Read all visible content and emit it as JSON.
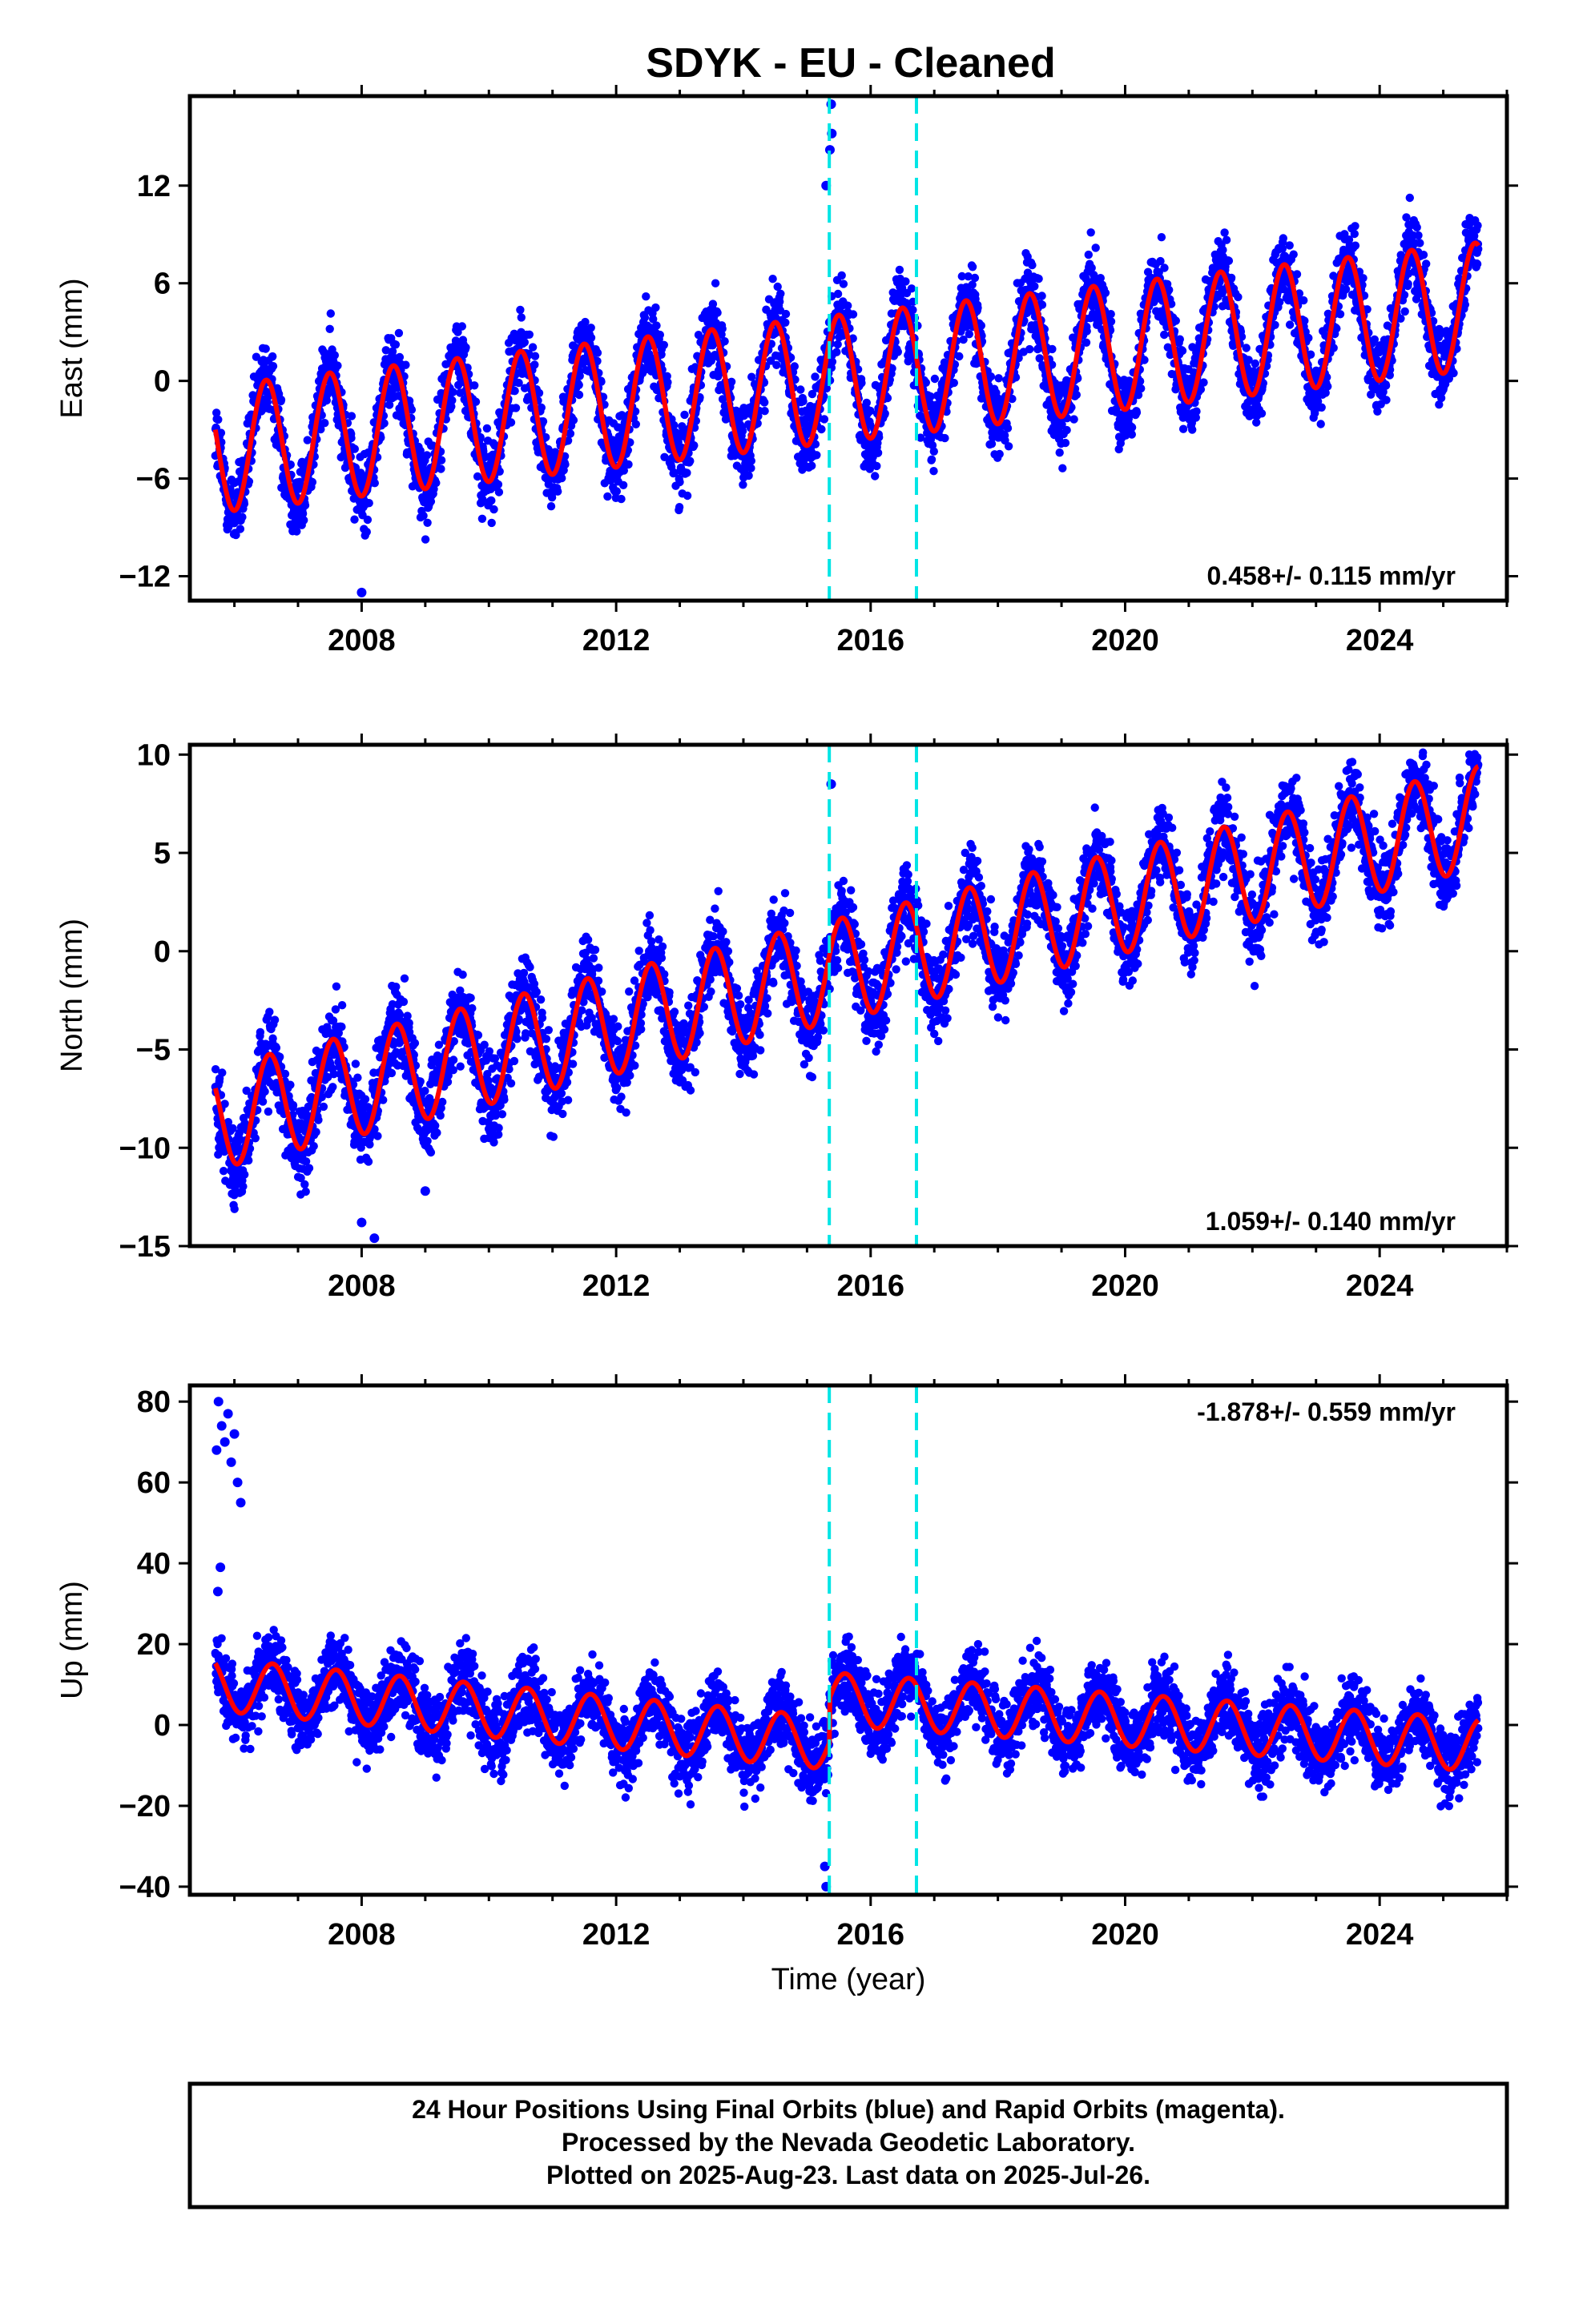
{
  "title": "SDYK  - EU - Cleaned",
  "xlabel": "Time (year)",
  "footer": {
    "line1": "24 Hour Positions Using Final Orbits (blue) and Rapid Orbits (magenta).",
    "line2": "Processed by the Nevada Geodetic Laboratory.",
    "line3": "Plotted on 2025-Aug-23. Last data on 2025-Jul-26."
  },
  "colors": {
    "points": "#0000ff",
    "model": "#ff0000",
    "events": "#00e5e5",
    "axis": "#000000"
  },
  "chart_data": [
    {
      "type": "scatter",
      "ylabel": "East (mm)",
      "rate_text": "0.458+/- 0.115 mm/yr",
      "rate_position": "bottom-right",
      "xlim": [
        2005.3,
        2026.0
      ],
      "ylim": [
        -13.5,
        17.5
      ],
      "xticks": [
        2008,
        2012,
        2016,
        2020,
        2024
      ],
      "yticks": [
        -12,
        -6,
        0,
        6,
        12
      ],
      "event_lines": [
        2015.35,
        2016.72
      ],
      "model": {
        "start_year": 2005.7,
        "end_year": 2025.55,
        "trend_start": -4.2,
        "trend_end": 4.6,
        "annual_amplitude": 3.9,
        "peak_fraction_of_year": 0.5,
        "amplitude_growth": 0.0
      },
      "scatter_spread": 1.6,
      "outliers": [
        [
          2015.38,
          17.0
        ],
        [
          2015.39,
          15.2
        ],
        [
          2015.36,
          14.2
        ],
        [
          2008.0,
          -13.0
        ],
        [
          2015.3,
          12.0
        ]
      ]
    },
    {
      "type": "scatter",
      "ylabel": "North (mm)",
      "rate_text": "1.059+/- 0.140 mm/yr",
      "rate_position": "bottom-right",
      "xlim": [
        2005.3,
        2026.0
      ],
      "ylim": [
        -15.0,
        10.5
      ],
      "xticks": [
        2008,
        2012,
        2016,
        2020,
        2024
      ],
      "yticks": [
        -15,
        -10,
        -5,
        0,
        5,
        10
      ],
      "event_lines": [
        2015.35,
        2016.72
      ],
      "model": {
        "start_year": 2005.7,
        "end_year": 2025.55,
        "trend_start": -8.5,
        "trend_end": 6.8,
        "annual_amplitude": 2.6,
        "peak_fraction_of_year": 0.55,
        "amplitude_growth": 0.0
      },
      "scatter_spread": 1.4,
      "outliers": [
        [
          2008.0,
          -13.8
        ],
        [
          2008.2,
          -14.6
        ],
        [
          2009.0,
          -12.2
        ],
        [
          2015.38,
          8.5
        ]
      ]
    },
    {
      "type": "scatter",
      "ylabel": "Up (mm)",
      "rate_text": "-1.878+/- 0.559 mm/yr",
      "rate_position": "top-right",
      "xlim": [
        2005.3,
        2026.0
      ],
      "ylim": [
        -42.0,
        84.0
      ],
      "xticks": [
        2008,
        2012,
        2016,
        2020,
        2024
      ],
      "yticks": [
        -40,
        -20,
        0,
        20,
        40,
        60,
        80
      ],
      "event_lines": [
        2015.35,
        2016.72
      ],
      "model": {
        "start_year": 2005.7,
        "end_year": 2025.55,
        "segments": [
          {
            "from": 2005.7,
            "to": 2015.35,
            "trend_start": 10.0,
            "trend_end": -4.5
          },
          {
            "from": 2015.35,
            "to": 2025.55,
            "trend_start": 6.5,
            "trend_end": -5.0
          }
        ],
        "annual_amplitude": 6.5,
        "peak_fraction_of_year": 0.6
      },
      "scatter_spread": 6.0,
      "outliers": [
        [
          2005.75,
          80
        ],
        [
          2005.8,
          74
        ],
        [
          2005.85,
          70
        ],
        [
          2005.9,
          77
        ],
        [
          2005.95,
          65
        ],
        [
          2006.0,
          72
        ],
        [
          2006.05,
          60
        ],
        [
          2006.1,
          55
        ],
        [
          2005.72,
          68
        ],
        [
          2005.78,
          39
        ],
        [
          2005.74,
          33
        ],
        [
          2015.3,
          -40
        ],
        [
          2015.28,
          -35
        ]
      ]
    }
  ]
}
